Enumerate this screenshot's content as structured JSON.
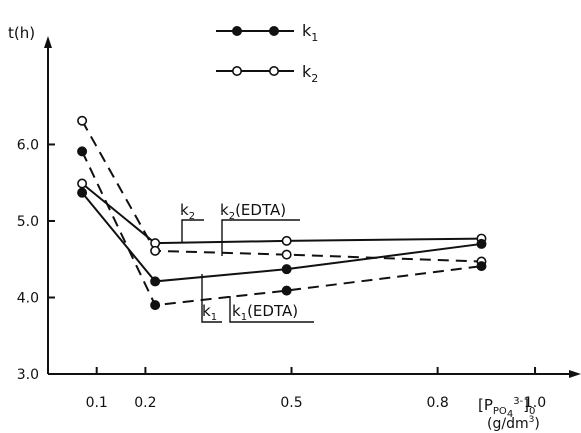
{
  "chart_data": {
    "type": "line",
    "xlabel": "[P",
    "xlabel_sub": "PO",
    "xlabel_sub2": "4",
    "xlabel_sup": "3-",
    "xlabel_end": "]",
    "xlabel_end_sub": "0",
    "xunit": "(g/dm",
    "xunit_sup": "3",
    "xunit_end": ")",
    "ylabel": "t(h)",
    "xlim": [
      0.0,
      1.08
    ],
    "ylim": [
      3.0,
      7.3
    ],
    "xticks": [
      "0.1",
      "0.2",
      "0.5",
      "0.8",
      "1.0"
    ],
    "xtick_values": [
      0.1,
      0.2,
      0.5,
      0.8,
      1.0
    ],
    "yticks": [
      "3.0",
      "4.0",
      "5.0",
      "6.0"
    ],
    "ytick_values": [
      3.0,
      4.0,
      5.0,
      6.0
    ],
    "grid": false,
    "legend_position": "top-right",
    "legend": [
      {
        "label": "k",
        "sub": "1",
        "marker": "filled"
      },
      {
        "label": "k",
        "sub": "2",
        "marker": "open"
      }
    ],
    "series": [
      {
        "name": "k2",
        "marker": "open",
        "dash": "solid",
        "x": [
          0.07,
          0.22,
          0.49,
          0.89
        ],
        "y": [
          5.49,
          4.71,
          4.74,
          4.77
        ]
      },
      {
        "name": "k2(EDTA)",
        "marker": "open",
        "dash": "dashed",
        "x": [
          0.07,
          0.22,
          0.49,
          0.89
        ],
        "y": [
          6.31,
          4.61,
          4.56,
          4.47
        ]
      },
      {
        "name": "k1",
        "marker": "filled",
        "dash": "solid",
        "x": [
          0.07,
          0.22,
          0.49,
          0.89
        ],
        "y": [
          5.37,
          4.21,
          4.37,
          4.7
        ]
      },
      {
        "name": "k1(EDTA)",
        "marker": "filled",
        "dash": "dashed",
        "x": [
          0.07,
          0.22,
          0.49,
          0.89
        ],
        "y": [
          5.91,
          3.9,
          4.09,
          4.41
        ]
      }
    ],
    "annotations": [
      {
        "text": "k",
        "sub": "2",
        "suffix": ""
      },
      {
        "text": "k",
        "sub": "2",
        "suffix": "(EDTA)"
      },
      {
        "text": "k",
        "sub": "1",
        "suffix": ""
      },
      {
        "text": "k",
        "sub": "1",
        "suffix": "(EDTA)"
      }
    ]
  }
}
